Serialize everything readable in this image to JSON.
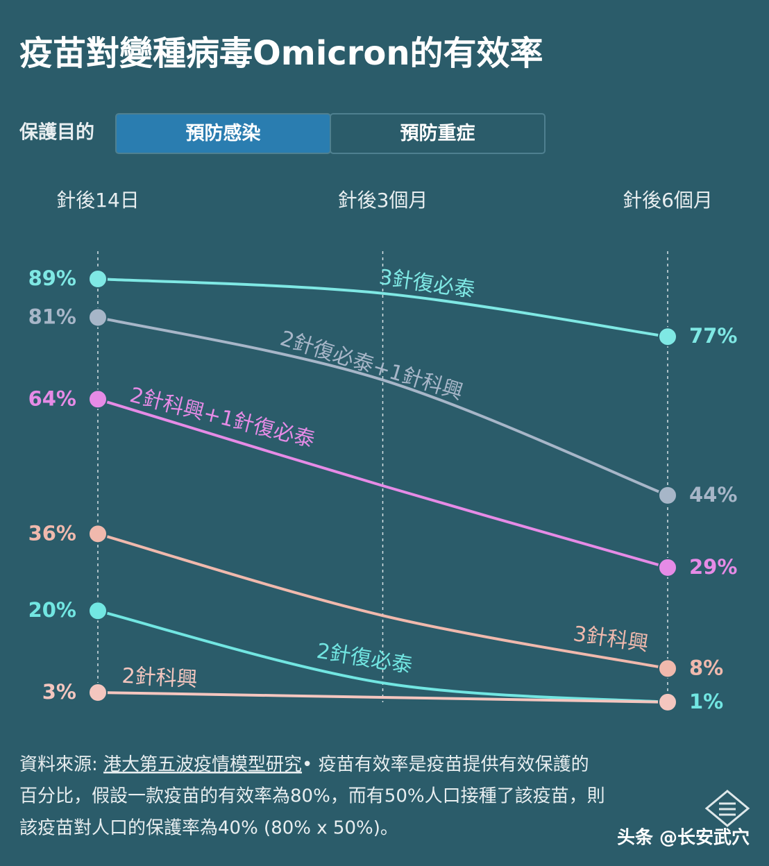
{
  "chart_data": {
    "type": "line",
    "title": "疫苗對變種病毒Omicron的有效率",
    "filter": {
      "label": "保護目的",
      "options": [
        "預防感染",
        "預防重症"
      ],
      "active": 0
    },
    "categories": [
      "針後14日",
      "針後3個月",
      "針後6個月"
    ],
    "ylim": [
      0,
      100
    ],
    "series": [
      {
        "name": "3針復必泰",
        "color": "#7fe8e4",
        "values": [
          89,
          86,
          77
        ],
        "value_labels": [
          "89%",
          null,
          "77%"
        ]
      },
      {
        "name": "2針復必泰+1針科興",
        "color": "#a7b6c8",
        "values": [
          81,
          68,
          44
        ],
        "value_labels": [
          "81%",
          null,
          "44%"
        ]
      },
      {
        "name": "2針科興+1針復必泰",
        "color": "#e68be6",
        "values": [
          64,
          46,
          29
        ],
        "value_labels": [
          "64%",
          null,
          "29%"
        ]
      },
      {
        "name": "3針科興",
        "color": "#f0b9ad",
        "values": [
          36,
          19,
          8
        ],
        "value_labels": [
          "36%",
          null,
          "8%"
        ]
      },
      {
        "name": "2針復必泰",
        "color": "#72e6e2",
        "values": [
          20,
          5,
          1
        ],
        "value_labels": [
          "20%",
          null,
          "1%"
        ]
      },
      {
        "name": "2針科興",
        "color": "#f4c6bf",
        "values": [
          3,
          2,
          1
        ],
        "value_labels": [
          "3%",
          null,
          null
        ]
      }
    ],
    "footer": {
      "source_label": "資料來源: ",
      "source": "港大第五波疫情模型研究",
      "lines": [
        "• 疫苗有效率是疫苗提供有效保護的",
        "百分比，假設一款疫苗的有效率為80%，而有50%人口接種了該疫苗，則",
        "該疫苗對人口的保護率為40% (80% x 50%)。"
      ]
    },
    "watermark": "头条 @长安武穴"
  }
}
